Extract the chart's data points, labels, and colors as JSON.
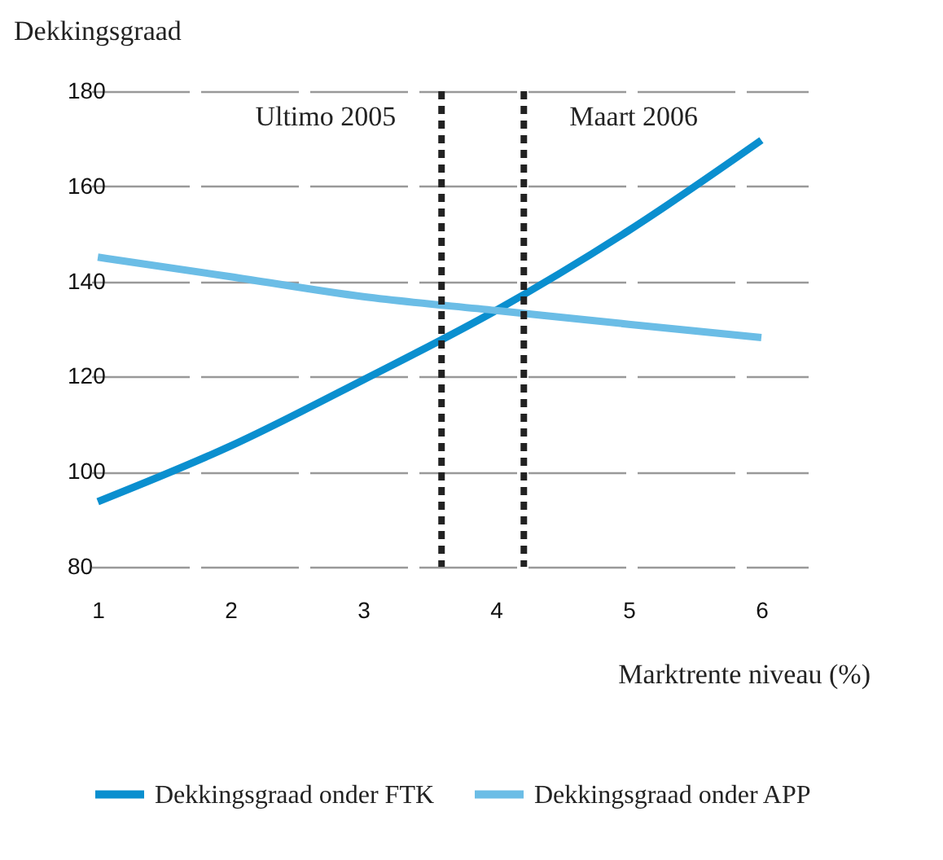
{
  "chart_data": {
    "type": "line",
    "xlabel": "Marktrente niveau (%)",
    "ylabel": "Dekkingsgraad",
    "x": [
      1,
      2,
      3,
      4,
      5,
      6
    ],
    "series": [
      {
        "name": "Dekkingsgraad onder FTK",
        "color": "#0a8fcf",
        "values": [
          93.7,
          105.4,
          119.3,
          133.9,
          150.7,
          169.7
        ]
      },
      {
        "name": "Dekkingsgraad onder APP",
        "color": "#6bbde6",
        "values": [
          145.1,
          141.0,
          136.8,
          133.9,
          131.0,
          128.2
        ]
      }
    ],
    "xlim": [
      0.95,
      6.35
    ],
    "xticks": [
      1,
      2,
      3,
      4,
      5,
      6
    ],
    "ylim": [
      80,
      180
    ],
    "yticks": [
      80,
      100,
      120,
      140,
      160,
      180
    ],
    "ref_lines": [
      {
        "axis": "x",
        "value": 3.59,
        "label": "Ultimo 2005",
        "color": "#222222",
        "line_style": "dashed"
      },
      {
        "axis": "x",
        "value": 4.21,
        "label": "Maart 2006",
        "color": "#222222",
        "line_style": "dashed"
      }
    ],
    "grid": "y",
    "legend": "bottom left",
    "line_style": "solid",
    "marker": "none"
  }
}
